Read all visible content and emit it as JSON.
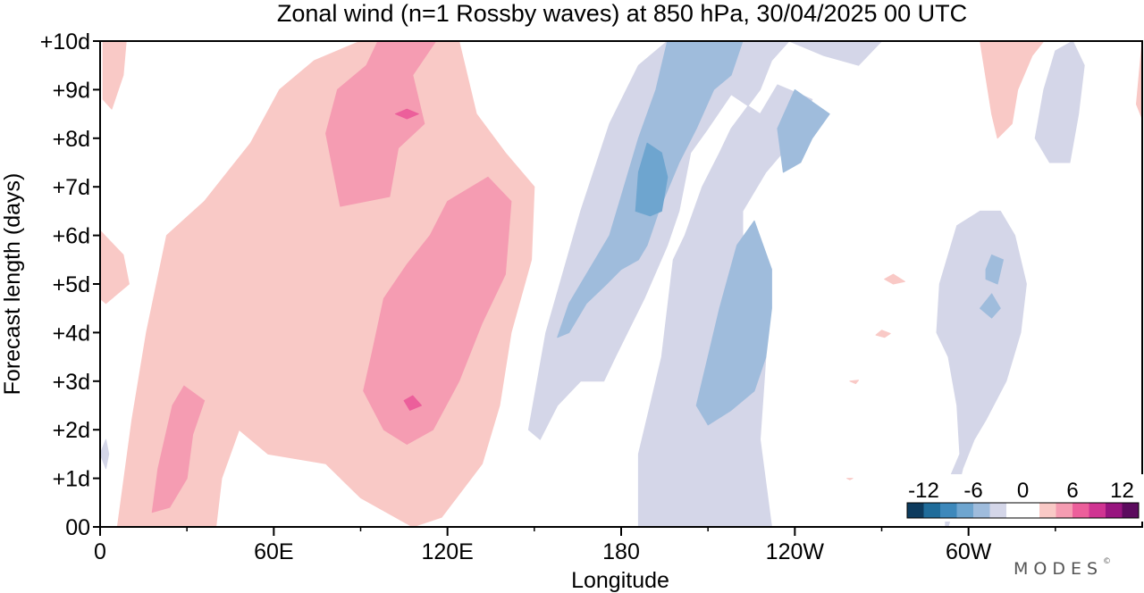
{
  "chart_data": {
    "type": "heatmap",
    "title": "Zonal wind (n=1 Rossby waves) at 850 hPa,  30/04/2025  00 UTC",
    "xlabel": "Longitude",
    "ylabel": "Forecast length (days)",
    "x_ticks": [
      {
        "lon": 0,
        "label": "0"
      },
      {
        "lon": 60,
        "label": "60E"
      },
      {
        "lon": 120,
        "label": "120E"
      },
      {
        "lon": 180,
        "label": "180"
      },
      {
        "lon": 240,
        "label": "120W"
      },
      {
        "lon": 300,
        "label": "60W"
      }
    ],
    "x_minor_ticks": [
      30,
      90,
      150,
      210,
      270,
      330
    ],
    "xlim": [
      0,
      360
    ],
    "y_ticks": [
      {
        "day": 0,
        "label": "00"
      },
      {
        "day": 1,
        "label": "+1d"
      },
      {
        "day": 2,
        "label": "+2d"
      },
      {
        "day": 3,
        "label": "+3d"
      },
      {
        "day": 4,
        "label": "+4d"
      },
      {
        "day": 5,
        "label": "+5d"
      },
      {
        "day": 6,
        "label": "+6d"
      },
      {
        "day": 7,
        "label": "+7d"
      },
      {
        "day": 8,
        "label": "+8d"
      },
      {
        "day": 9,
        "label": "+9d"
      },
      {
        "day": 10,
        "label": "+10d"
      }
    ],
    "ylim": [
      0,
      10
    ],
    "colorbar": {
      "labels": [
        "-12",
        "-6",
        "0",
        "6",
        "12"
      ],
      "label_values": [
        -12,
        -6,
        0,
        6,
        12
      ],
      "levels": [
        -14,
        -12,
        -10,
        -8,
        -6,
        -4,
        -2,
        2,
        4,
        6,
        8,
        10,
        12,
        14
      ],
      "colors": [
        "#0d3b5e",
        "#1f6c9a",
        "#3d88bb",
        "#6ea5cf",
        "#9fbcdc",
        "#d4d6e8",
        "#ffffff",
        "#ffffff",
        "#f9c9c6",
        "#f59cb2",
        "#ec5f9b",
        "#d03492",
        "#98157f",
        "#5c0b5e"
      ],
      "placement": "inside bottom-right"
    },
    "contours": [
      {
        "level": 2,
        "band": "2 to 4",
        "color": "#f9c9c6",
        "polygons": [
          [
            [
              0,
              6.1
            ],
            [
              8,
              5.6
            ],
            [
              10,
              5.0
            ],
            [
              2,
              4.6
            ],
            [
              0,
              4.7
            ]
          ],
          [
            [
              1,
              10
            ],
            [
              9,
              10
            ],
            [
              8,
              9.3
            ],
            [
              4,
              8.6
            ],
            [
              1,
              8.8
            ]
          ],
          [
            [
              6,
              0
            ],
            [
              11,
              2.2
            ],
            [
              16,
              4.0
            ],
            [
              23,
              6.0
            ],
            [
              36,
              6.7
            ],
            [
              52,
              7.9
            ],
            [
              62,
              9.0
            ],
            [
              74,
              9.6
            ],
            [
              90,
              10
            ],
            [
              124,
              10
            ],
            [
              130,
              8.5
            ],
            [
              140,
              7.7
            ],
            [
              150,
              7.0
            ],
            [
              149,
              5.5
            ],
            [
              142,
              4.0
            ],
            [
              138,
              2.5
            ],
            [
              132,
              1.3
            ],
            [
              118,
              0.2
            ],
            [
              108,
              0
            ],
            [
              90,
              0.6
            ],
            [
              78,
              1.3
            ],
            [
              58,
              1.5
            ],
            [
              48,
              2.0
            ],
            [
              42,
              1.0
            ],
            [
              40,
              0
            ]
          ],
          [
            [
              304,
              10
            ],
            [
              308,
              8.5
            ],
            [
              310,
              8.0
            ],
            [
              315,
              8.3
            ],
            [
              317,
              9.0
            ],
            [
              322,
              9.7
            ],
            [
              326,
              10
            ]
          ],
          [
            [
              360,
              10
            ],
            [
              358,
              8.7
            ],
            [
              360,
              8.4
            ]
          ],
          [
            [
              271,
              5.1
            ],
            [
              274,
              5.0
            ],
            [
              278,
              5.05
            ],
            [
              274,
              5.2
            ]
          ],
          [
            [
              268,
              3.95
            ],
            [
              271,
              3.9
            ],
            [
              273,
              3.98
            ],
            [
              270,
              4.05
            ]
          ],
          [
            [
              259,
              3.0
            ],
            [
              261,
              2.95
            ],
            [
              262,
              3.02
            ]
          ],
          [
            [
              258,
              1.0
            ],
            [
              259,
              0.97
            ],
            [
              260,
              1.0
            ]
          ]
        ]
      },
      {
        "level": 4,
        "band": "4 to 6",
        "color": "#f59cb2",
        "polygons": [
          [
            [
              20,
              1.2
            ],
            [
              25,
              2.5
            ],
            [
              29,
              2.9
            ],
            [
              36,
              2.6
            ],
            [
              32,
              1.9
            ],
            [
              30,
              1.0
            ],
            [
              24,
              0.4
            ],
            [
              18,
              0.3
            ]
          ],
          [
            [
              78,
              8.1
            ],
            [
              82,
              9.0
            ],
            [
              92,
              9.5
            ],
            [
              96,
              10
            ],
            [
              116,
              10
            ],
            [
              108,
              9.3
            ],
            [
              112,
              8.3
            ],
            [
              103,
              7.8
            ],
            [
              100,
              6.8
            ],
            [
              83,
              6.6
            ]
          ],
          [
            [
              91,
              2.8
            ],
            [
              94,
              3.6
            ],
            [
              98,
              4.7
            ],
            [
              106,
              5.4
            ],
            [
              114,
              6.0
            ],
            [
              120,
              6.7
            ],
            [
              134,
              7.2
            ],
            [
              142,
              6.7
            ],
            [
              140,
              5.2
            ],
            [
              132,
              4.2
            ],
            [
              124,
              3.0
            ],
            [
              115,
              2.0
            ],
            [
              106,
              1.7
            ],
            [
              98,
              2.0
            ]
          ]
        ]
      },
      {
        "level": 6,
        "band": "6 to 8",
        "color": "#ec5f9b",
        "polygons": [
          [
            [
              102,
              8.5
            ],
            [
              106,
              8.6
            ],
            [
              110,
              8.5
            ],
            [
              106,
              8.4
            ]
          ],
          [
            [
              105,
              2.6
            ],
            [
              108,
              2.7
            ],
            [
              111,
              2.5
            ],
            [
              107,
              2.4
            ]
          ]
        ]
      },
      {
        "level": -2,
        "band": "-4 to -2",
        "color": "#d4d6e8",
        "polygons": [
          [
            [
              148,
              2.0
            ],
            [
              154,
              4.0
            ],
            [
              166,
              6.5
            ],
            [
              176,
              8.3
            ],
            [
              186,
              9.5
            ],
            [
              196,
              10
            ],
            [
              270,
              10
            ],
            [
              262,
              9.5
            ],
            [
              250,
              9.7
            ],
            [
              238,
              10
            ],
            [
              232,
              9.6
            ],
            [
              228,
              9.0
            ],
            [
              218,
              8.2
            ],
            [
              214,
              7.7
            ],
            [
              208,
              7.0
            ],
            [
              202,
              6.0
            ],
            [
              198,
              5.5
            ],
            [
              196,
              4.5
            ],
            [
              194,
              3.5
            ],
            [
              190,
              2.5
            ],
            [
              186,
              1.5
            ],
            [
              186,
              0
            ],
            [
              232,
              0
            ],
            [
              228,
              1.8
            ],
            [
              230,
              3.5
            ],
            [
              226,
              4.5
            ],
            [
              222,
              5.2
            ],
            [
              222,
              6.5
            ],
            [
              230,
              7.3
            ],
            [
              240,
              8.0
            ],
            [
              246,
              8.8
            ],
            [
              234,
              9.1
            ],
            [
              228,
              8.5
            ],
            [
              218,
              8.9
            ],
            [
              210,
              8.2
            ],
            [
              204,
              7.7
            ],
            [
              200,
              6.5
            ],
            [
              196,
              5.8
            ],
            [
              188,
              4.7
            ],
            [
              178,
              3.5
            ],
            [
              174,
              3.0
            ],
            [
              166,
              3.0
            ],
            [
              158,
              2.5
            ],
            [
              152,
              1.8
            ]
          ],
          [
            [
              293,
              0
            ],
            [
              298,
              1.2
            ],
            [
              302,
              1.8
            ],
            [
              306,
              2.2
            ],
            [
              313,
              3.0
            ],
            [
              318,
              4.0
            ],
            [
              320,
              5.0
            ],
            [
              316,
              6.0
            ],
            [
              311,
              6.5
            ],
            [
              304,
              6.5
            ],
            [
              296,
              6.2
            ],
            [
              290,
              5.0
            ],
            [
              289,
              4.0
            ],
            [
              293,
              3.5
            ],
            [
              296,
              2.5
            ],
            [
              297,
              1.5
            ],
            [
              292,
              0.8
            ],
            [
              292,
              0
            ]
          ],
          [
            [
              323,
              8.0
            ],
            [
              326,
              9.0
            ],
            [
              330,
              9.8
            ],
            [
              336,
              10
            ],
            [
              340,
              9.5
            ],
            [
              338,
              8.5
            ],
            [
              335,
              7.5
            ],
            [
              328,
              7.5
            ]
          ],
          [
            [
              0,
              1.5
            ],
            [
              2,
              1.8
            ],
            [
              3,
              1.5
            ],
            [
              2,
              1.2
            ]
          ]
        ]
      },
      {
        "level": -4,
        "band": "-6 to -4",
        "color": "#9fbcdc",
        "polygons": [
          [
            [
              158,
              3.9
            ],
            [
              162,
              4.6
            ],
            [
              170,
              5.4
            ],
            [
              176,
              6.0
            ],
            [
              180,
              6.8
            ],
            [
              186,
              8.0
            ],
            [
              192,
              9.0
            ],
            [
              196,
              10
            ],
            [
              222,
              10
            ],
            [
              218,
              9.3
            ],
            [
              212,
              9.0
            ],
            [
              206,
              8.2
            ],
            [
              200,
              7.5
            ],
            [
              193,
              6.5
            ],
            [
              189,
              5.8
            ],
            [
              186,
              5.5
            ],
            [
              180,
              5.3
            ],
            [
              175,
              5.0
            ],
            [
              168,
              4.6
            ],
            [
              162,
              4.0
            ]
          ],
          [
            [
              234,
              8.2
            ],
            [
              240,
              9.0
            ],
            [
              252,
              8.5
            ],
            [
              246,
              8.0
            ],
            [
              242,
              7.5
            ],
            [
              236,
              7.3
            ]
          ],
          [
            [
              206,
              2.5
            ],
            [
              210,
              3.5
            ],
            [
              214,
              4.5
            ],
            [
              220,
              5.8
            ],
            [
              226,
              6.3
            ],
            [
              232,
              5.3
            ],
            [
              232,
              4.5
            ],
            [
              230,
              3.5
            ],
            [
              226,
              2.8
            ],
            [
              218,
              2.4
            ],
            [
              210,
              2.1
            ]
          ],
          [
            [
              306,
              5.3
            ],
            [
              308,
              5.6
            ],
            [
              312,
              5.5
            ],
            [
              310,
              5.0
            ],
            [
              306,
              5.1
            ]
          ],
          [
            [
              304,
              4.5
            ],
            [
              308,
              4.8
            ],
            [
              311,
              4.5
            ],
            [
              308,
              4.3
            ]
          ]
        ]
      },
      {
        "level": -6,
        "band": "-8 to -6",
        "color": "#6ea5cf",
        "polygons": [
          [
            [
              185,
              6.5
            ],
            [
              186,
              7.3
            ],
            [
              189,
              7.9
            ],
            [
              194,
              7.7
            ],
            [
              196,
              7.2
            ],
            [
              194,
              6.5
            ],
            [
              190,
              6.4
            ]
          ]
        ]
      }
    ]
  }
}
